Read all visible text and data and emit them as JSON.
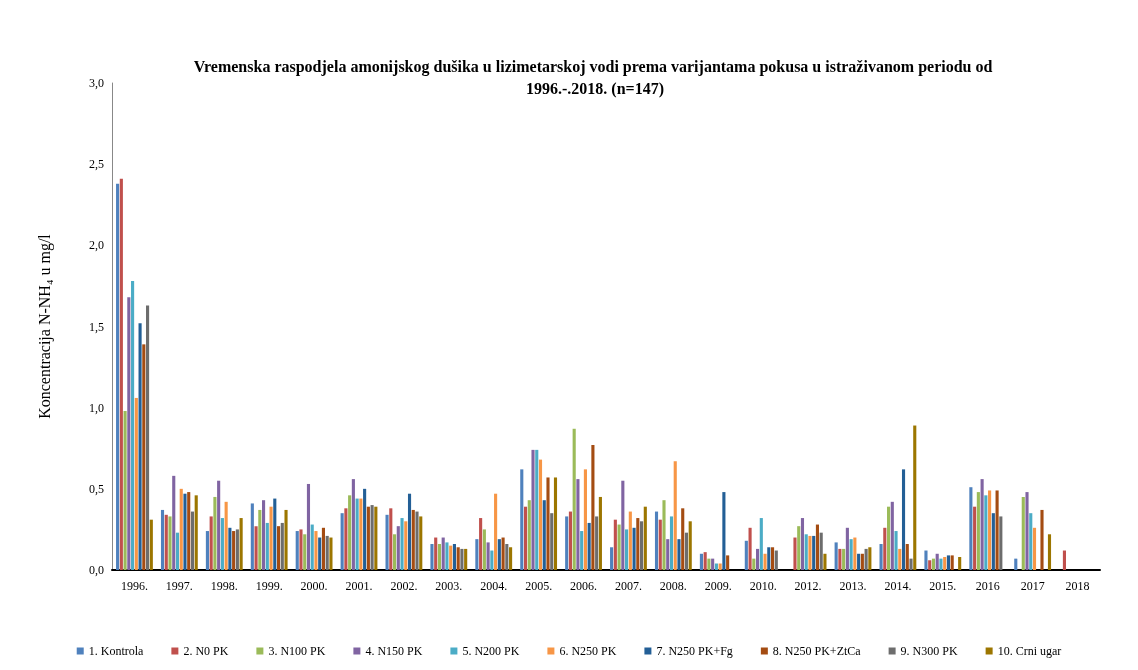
{
  "chart_data": {
    "type": "bar",
    "title": "Vremenska raspodjela amonijskog dušika u lizimetarskoj vodi prema varijantama pokusa u istraživanom periodu od 1996.-.2018. (n=147)",
    "ylabel": "Koncentracija N-NH₄ u mg/l",
    "categories": [
      "1996.",
      "1997.",
      "1998.",
      "1999.",
      "2000.",
      "2001.",
      "2002.",
      "2003.",
      "2004.",
      "2005.",
      "2006.",
      "2007.",
      "2008.",
      "2009.",
      "2010.",
      "2012.",
      "2013.",
      "2014.",
      "2015.",
      "2016",
      "2017",
      "2018"
    ],
    "series": [
      {
        "name": "1. Kontrola",
        "color": "#4f81bd",
        "values": [
          2.38,
          0.37,
          0.24,
          0.41,
          0.24,
          0.35,
          0.34,
          0.16,
          0.19,
          0.62,
          0.33,
          0.14,
          0.36,
          0.1,
          0.18,
          null,
          0.17,
          0.16,
          0.12,
          0.51,
          0.07,
          null
        ]
      },
      {
        "name": "2. N0 PK",
        "color": "#c0504d",
        "values": [
          2.41,
          0.34,
          0.33,
          0.27,
          0.25,
          0.38,
          0.38,
          0.2,
          0.32,
          0.39,
          0.36,
          0.31,
          0.31,
          0.11,
          0.26,
          0.2,
          0.13,
          0.26,
          0.06,
          0.39,
          null,
          0.12
        ]
      },
      {
        "name": "3. N100 PK",
        "color": "#9bbb59",
        "values": [
          0.98,
          0.33,
          0.45,
          0.37,
          0.22,
          0.46,
          0.22,
          0.16,
          0.25,
          0.43,
          0.87,
          0.28,
          0.43,
          0.07,
          0.07,
          0.27,
          0.13,
          0.39,
          0.07,
          0.48,
          0.45,
          null
        ]
      },
      {
        "name": "4. N150 PK",
        "color": "#8064a2",
        "values": [
          1.68,
          0.58,
          0.55,
          0.43,
          0.53,
          0.56,
          0.27,
          0.2,
          0.17,
          0.74,
          0.56,
          0.55,
          0.19,
          0.07,
          0.13,
          0.32,
          0.26,
          0.42,
          0.1,
          0.56,
          0.48,
          null
        ]
      },
      {
        "name": "5. N200 PK",
        "color": "#4bacc6",
        "values": [
          1.78,
          0.23,
          0.32,
          0.29,
          0.28,
          0.44,
          0.32,
          0.17,
          0.12,
          0.74,
          0.24,
          0.25,
          0.33,
          0.04,
          0.32,
          0.22,
          0.19,
          0.24,
          0.07,
          0.46,
          0.35,
          null
        ]
      },
      {
        "name": "6. N250 PK",
        "color": "#f79646",
        "values": [
          1.06,
          0.5,
          0.42,
          0.39,
          0.24,
          0.44,
          0.3,
          0.15,
          0.47,
          0.68,
          0.62,
          0.36,
          0.67,
          0.04,
          0.1,
          0.21,
          0.2,
          0.13,
          0.08,
          0.49,
          0.26,
          null
        ]
      },
      {
        "name": "7. N250 PK+Fg",
        "color": "#235f96",
        "values": [
          1.52,
          0.47,
          0.26,
          0.44,
          0.2,
          0.5,
          0.47,
          0.16,
          0.19,
          0.43,
          0.29,
          0.26,
          0.19,
          0.48,
          0.14,
          0.21,
          0.1,
          0.62,
          0.09,
          0.35,
          null,
          null
        ]
      },
      {
        "name": "8. N250 PK+ZtCa",
        "color": "#a44c12",
        "values": [
          1.39,
          0.48,
          0.24,
          0.27,
          0.26,
          0.39,
          0.37,
          0.14,
          0.2,
          0.57,
          0.77,
          0.32,
          0.38,
          0.09,
          0.14,
          0.28,
          0.1,
          0.16,
          0.09,
          0.49,
          0.37,
          null
        ]
      },
      {
        "name": "9. N300 PK",
        "color": "#6d6d6d",
        "values": [
          1.63,
          0.36,
          0.25,
          0.29,
          0.21,
          0.4,
          0.36,
          0.13,
          0.16,
          0.35,
          0.33,
          0.3,
          0.23,
          null,
          0.12,
          0.23,
          0.13,
          0.07,
          null,
          0.33,
          null,
          null
        ]
      },
      {
        "name": "10. Crni ugar",
        "color": "#9c7600",
        "values": [
          0.31,
          0.46,
          0.32,
          0.37,
          0.2,
          0.39,
          0.33,
          0.13,
          0.14,
          0.57,
          0.45,
          0.39,
          0.3,
          null,
          null,
          0.1,
          0.14,
          0.89,
          0.08,
          null,
          0.22,
          null
        ]
      }
    ],
    "ylim": [
      0,
      3
    ],
    "yticks": [
      {
        "value": 0,
        "label": "0,0"
      },
      {
        "value": 0.5,
        "label": "0,5"
      },
      {
        "value": 1,
        "label": "1,0"
      },
      {
        "value": 1.5,
        "label": "1,5"
      },
      {
        "value": 2,
        "label": "2,0"
      },
      {
        "value": 2.5,
        "label": "2,5"
      },
      {
        "value": 3,
        "label": "3,0"
      }
    ],
    "grid": false,
    "legend": "bottom"
  }
}
